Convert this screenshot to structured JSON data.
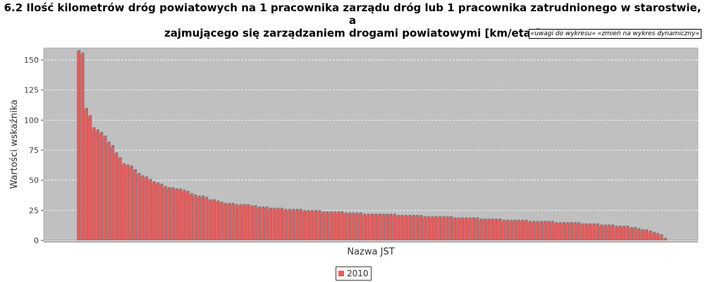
{
  "title_line1": "6.2 Ilość kilometrów dróg powiatowych na 1 pracownika zarządu dróg lub 1 pracownika zatrudnionego w starostwie, a",
  "title_line2": "zajmującego się zarządzaniem drogami powiatowymi [km/etat]",
  "links": {
    "notes": "«uwagi do wykresu»",
    "dynamic": "«zmień na wykres dynamiczny»"
  },
  "colors": {
    "bar": "#ee5a5a",
    "bar_shadow": "#7a7a7a",
    "plot_bg": "#c0c0c0"
  },
  "chart_data": {
    "type": "bar",
    "xlabel": "Nazwa JST",
    "ylabel": "Wartości wskaźnika",
    "ylim": [
      0,
      160
    ],
    "yticks": [
      0,
      25,
      50,
      75,
      100,
      125,
      150
    ],
    "grid": true,
    "legend_position": "bottom",
    "series": [
      {
        "name": "2010",
        "values": [
          157,
          155,
          109,
          103,
          93,
          91,
          89,
          86,
          81,
          78,
          72,
          68,
          63,
          62,
          61,
          58,
          55,
          53,
          52,
          50,
          48,
          47,
          46,
          44,
          43,
          43,
          42,
          42,
          41,
          40,
          38,
          37,
          36,
          36,
          35,
          33,
          33,
          32,
          31,
          30,
          30,
          30,
          29,
          29,
          29,
          29,
          28,
          28,
          27,
          27,
          27,
          26,
          26,
          26,
          26,
          25,
          25,
          25,
          25,
          25,
          24,
          24,
          24,
          24,
          24,
          23,
          23,
          23,
          23,
          23,
          23,
          22,
          22,
          22,
          22,
          22,
          21,
          21,
          21,
          21,
          21,
          21,
          21,
          21,
          21,
          20,
          20,
          20,
          20,
          20,
          20,
          20,
          19,
          19,
          19,
          19,
          19,
          19,
          19,
          19,
          18,
          18,
          18,
          18,
          18,
          18,
          18,
          17,
          17,
          17,
          17,
          17,
          17,
          16,
          16,
          16,
          16,
          16,
          16,
          16,
          15,
          15,
          15,
          15,
          15,
          15,
          15,
          14,
          14,
          14,
          14,
          14,
          14,
          14,
          13,
          13,
          13,
          13,
          13,
          12,
          12,
          12,
          12,
          11,
          11,
          11,
          11,
          10,
          10,
          9,
          8,
          8,
          7,
          6,
          5,
          4,
          1
        ]
      }
    ]
  }
}
